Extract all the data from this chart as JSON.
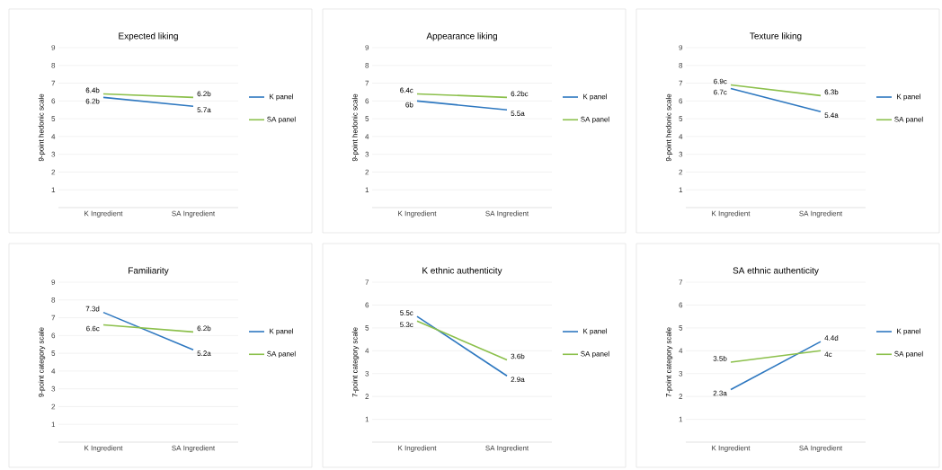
{
  "chart_data": [
    {
      "type": "line",
      "title": "Expected liking",
      "ylabel": "9-point hedonic scale",
      "categories": [
        "K Ingredient",
        "SA Ingredient"
      ],
      "ylim": [
        0,
        9
      ],
      "yticks": [
        1,
        2,
        3,
        4,
        5,
        6,
        7,
        8,
        9
      ],
      "grid": "y",
      "legend": "right",
      "series": [
        {
          "name": "K panel",
          "color": "#2e78c0",
          "values": [
            6.2,
            5.7
          ],
          "value_labels": [
            "6.2b",
            "5.7a"
          ]
        },
        {
          "name": "SA panel",
          "color": "#8cc04c",
          "values": [
            6.4,
            6.2
          ],
          "value_labels": [
            "6.4b",
            "6.2b"
          ]
        }
      ]
    },
    {
      "type": "line",
      "title": "Appearance liking",
      "ylabel": "9-point hedonic scale",
      "categories": [
        "K Ingredient",
        "SA Ingredient"
      ],
      "ylim": [
        0,
        9
      ],
      "yticks": [
        1,
        2,
        3,
        4,
        5,
        6,
        7,
        8,
        9
      ],
      "grid": "y",
      "legend": "right",
      "series": [
        {
          "name": "K panel",
          "color": "#2e78c0",
          "values": [
            6,
            5.5
          ],
          "value_labels": [
            "6b",
            "5.5a"
          ]
        },
        {
          "name": "SA panel",
          "color": "#8cc04c",
          "values": [
            6.4,
            6.2
          ],
          "value_labels": [
            "6.4c",
            "6.2bc"
          ]
        }
      ]
    },
    {
      "type": "line",
      "title": "Texture liking",
      "ylabel": "9-point hedonic scale",
      "categories": [
        "K Ingredient",
        "SA Ingredient"
      ],
      "ylim": [
        0,
        9
      ],
      "yticks": [
        1,
        2,
        3,
        4,
        5,
        6,
        7,
        8,
        9
      ],
      "grid": "y",
      "legend": "right",
      "series": [
        {
          "name": "K panel",
          "color": "#2e78c0",
          "values": [
            6.7,
            5.4
          ],
          "value_labels": [
            "6.7c",
            "5.4a"
          ]
        },
        {
          "name": "SA panel",
          "color": "#8cc04c",
          "values": [
            6.9,
            6.3
          ],
          "value_labels": [
            "6.9c",
            "6.3b"
          ]
        }
      ]
    },
    {
      "type": "line",
      "title": "Familiarity",
      "ylabel": "9-point category scale",
      "categories": [
        "K Ingredient",
        "SA Ingredient"
      ],
      "ylim": [
        0,
        9
      ],
      "yticks": [
        1,
        2,
        3,
        4,
        5,
        6,
        7,
        8,
        9
      ],
      "grid": "y",
      "legend": "right",
      "series": [
        {
          "name": "K panel",
          "color": "#2e78c0",
          "values": [
            7.3,
            5.2
          ],
          "value_labels": [
            "7.3d",
            "5.2a"
          ]
        },
        {
          "name": "SA panel",
          "color": "#8cc04c",
          "values": [
            6.6,
            6.2
          ],
          "value_labels": [
            "6.6c",
            "6.2b"
          ]
        }
      ]
    },
    {
      "type": "line",
      "title": "K ethnic authenticity",
      "ylabel": "7-point category scale",
      "categories": [
        "K Ingredient",
        "SA Ingredient"
      ],
      "ylim": [
        0,
        7
      ],
      "yticks": [
        1,
        2,
        3,
        4,
        5,
        6,
        7
      ],
      "grid": "y",
      "legend": "right",
      "series": [
        {
          "name": "K panel",
          "color": "#2e78c0",
          "values": [
            5.5,
            2.9
          ],
          "value_labels": [
            "5.5c",
            "2.9a"
          ]
        },
        {
          "name": "SA panel",
          "color": "#8cc04c",
          "values": [
            5.3,
            3.6
          ],
          "value_labels": [
            "5.3c",
            "3.6b"
          ]
        }
      ]
    },
    {
      "type": "line",
      "title": "SA ethnic authenticity",
      "ylabel": "7-point category scale",
      "categories": [
        "K Ingredient",
        "SA Ingredient"
      ],
      "ylim": [
        0,
        7
      ],
      "yticks": [
        1,
        2,
        3,
        4,
        5,
        6,
        7
      ],
      "grid": "y",
      "legend": "right",
      "series": [
        {
          "name": "K panel",
          "color": "#2e78c0",
          "values": [
            2.3,
            4.4
          ],
          "value_labels": [
            "2.3a",
            "4.4d"
          ]
        },
        {
          "name": "SA panel",
          "color": "#8cc04c",
          "values": [
            3.5,
            4
          ],
          "value_labels": [
            "3.5b",
            "4c"
          ]
        }
      ]
    }
  ]
}
